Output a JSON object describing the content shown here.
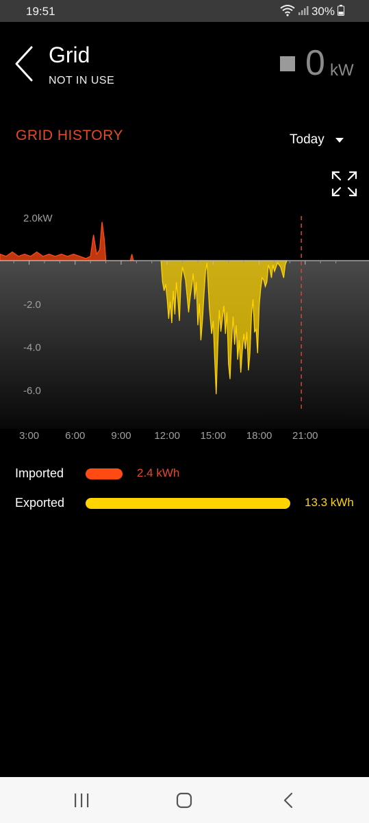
{
  "status_bar": {
    "time": "19:51",
    "battery": "30%"
  },
  "header": {
    "title": "Grid",
    "subtitle": "NOT IN USE",
    "power_value": "0",
    "power_unit": "kW"
  },
  "history": {
    "title": "GRID HISTORY",
    "range": "Today"
  },
  "legend": {
    "imported": {
      "label": "Imported",
      "value": "2.4 kWh",
      "color": "#ff4a14",
      "kwh": 2.4
    },
    "exported": {
      "label": "Exported",
      "value": "13.3 kWh",
      "color": "#ffd400",
      "kwh": 13.3
    }
  },
  "colors": {
    "accent": "#e24a2a",
    "import": "#ff4a14",
    "export": "#ffd400",
    "now_marker": "#d04a30"
  },
  "chart_data": {
    "type": "area",
    "title": "GRID HISTORY",
    "xlabel": "",
    "ylabel": "",
    "x_unit": "hour",
    "xlim": [
      1.1,
      23.5
    ],
    "ylim": [
      -8,
      2.5
    ],
    "x_ticks": [
      3,
      6,
      9,
      12,
      15,
      18,
      21
    ],
    "x_tick_labels": [
      "3:00",
      "6:00",
      "9:00",
      "12:00",
      "15:00",
      "18:00",
      "21:00"
    ],
    "y_ticks": [
      2.0,
      -2.0,
      -4.0,
      -6.0
    ],
    "y_tick_labels": [
      "2.0kW",
      "-2.0",
      "-4.0",
      "-6.0"
    ],
    "now_marker_x": 20.75,
    "series": [
      {
        "name": "Imported",
        "points": [
          [
            1.1,
            0.3
          ],
          [
            1.5,
            0.2
          ],
          [
            1.9,
            0.4
          ],
          [
            2.3,
            0.2
          ],
          [
            2.7,
            0.3
          ],
          [
            3.1,
            0.2
          ],
          [
            3.5,
            0.4
          ],
          [
            3.9,
            0.2
          ],
          [
            4.3,
            0.3
          ],
          [
            4.7,
            0.2
          ],
          [
            5.1,
            0.3
          ],
          [
            5.5,
            0.2
          ],
          [
            5.9,
            0.3
          ],
          [
            6.3,
            0.2
          ],
          [
            6.7,
            0.1
          ],
          [
            7.0,
            0.2
          ],
          [
            7.2,
            1.2
          ],
          [
            7.4,
            0.3
          ],
          [
            7.6,
            0.5
          ],
          [
            7.75,
            1.8
          ],
          [
            7.9,
            1.0
          ],
          [
            8.0,
            0.0
          ],
          [
            9.6,
            0.0
          ],
          [
            9.7,
            0.3
          ],
          [
            9.8,
            0.0
          ]
        ]
      },
      {
        "name": "Exported",
        "points": [
          [
            11.6,
            0.0
          ],
          [
            11.7,
            -1.0
          ],
          [
            11.8,
            -1.4
          ],
          [
            11.9,
            -1.1
          ],
          [
            12.0,
            -1.8
          ],
          [
            12.1,
            -2.7
          ],
          [
            12.2,
            -1.9
          ],
          [
            12.3,
            -2.9
          ],
          [
            12.4,
            -1.4
          ],
          [
            12.5,
            -2.5
          ],
          [
            12.6,
            -1.0
          ],
          [
            12.7,
            -1.8
          ],
          [
            12.8,
            -2.8
          ],
          [
            12.9,
            -1.0
          ],
          [
            13.0,
            -0.3
          ],
          [
            13.2,
            -0.9
          ],
          [
            13.4,
            -2.4
          ],
          [
            13.5,
            -1.7
          ],
          [
            13.6,
            -1.2
          ],
          [
            13.7,
            -0.6
          ],
          [
            13.8,
            -1.8
          ],
          [
            13.9,
            -1.0
          ],
          [
            14.0,
            -3.0
          ],
          [
            14.1,
            -2.0
          ],
          [
            14.2,
            -3.7
          ],
          [
            14.3,
            -2.8
          ],
          [
            14.4,
            -1.6
          ],
          [
            14.5,
            -0.5
          ],
          [
            14.6,
            -0.1
          ],
          [
            14.75,
            -2.2
          ],
          [
            14.9,
            -3.4
          ],
          [
            15.0,
            -2.8
          ],
          [
            15.1,
            -4.6
          ],
          [
            15.2,
            -6.2
          ],
          [
            15.3,
            -4.0
          ],
          [
            15.4,
            -2.3
          ],
          [
            15.5,
            -3.3
          ],
          [
            15.6,
            -2.7
          ],
          [
            15.7,
            -2.1
          ],
          [
            15.8,
            -3.4
          ],
          [
            15.9,
            -2.4
          ],
          [
            16.0,
            -4.8
          ],
          [
            16.1,
            -5.5
          ],
          [
            16.2,
            -3.8
          ],
          [
            16.3,
            -2.6
          ],
          [
            16.4,
            -3.9
          ],
          [
            16.5,
            -3.0
          ],
          [
            16.6,
            -4.6
          ],
          [
            16.7,
            -3.7
          ],
          [
            16.8,
            -5.2
          ],
          [
            16.9,
            -4.2
          ],
          [
            17.0,
            -3.4
          ],
          [
            17.1,
            -4.1
          ],
          [
            17.2,
            -3.3
          ],
          [
            17.3,
            -5.1
          ],
          [
            17.4,
            -4.3
          ],
          [
            17.5,
            -2.5
          ],
          [
            17.6,
            -1.8
          ],
          [
            17.7,
            -3.3
          ],
          [
            17.8,
            -3.2
          ],
          [
            17.9,
            -4.3
          ],
          [
            18.0,
            -2.1
          ],
          [
            18.1,
            -1.3
          ],
          [
            18.2,
            -0.8
          ],
          [
            18.3,
            -0.9
          ],
          [
            18.4,
            -1.2
          ],
          [
            18.5,
            -1.0
          ],
          [
            18.6,
            -0.2
          ],
          [
            18.7,
            -0.4
          ],
          [
            18.8,
            -0.8
          ],
          [
            18.9,
            -0.2
          ],
          [
            19.0,
            -0.5
          ],
          [
            19.2,
            -0.1
          ],
          [
            19.4,
            -0.3
          ],
          [
            19.6,
            -0.8
          ],
          [
            19.7,
            -0.2
          ],
          [
            19.8,
            0.0
          ]
        ]
      }
    ]
  }
}
